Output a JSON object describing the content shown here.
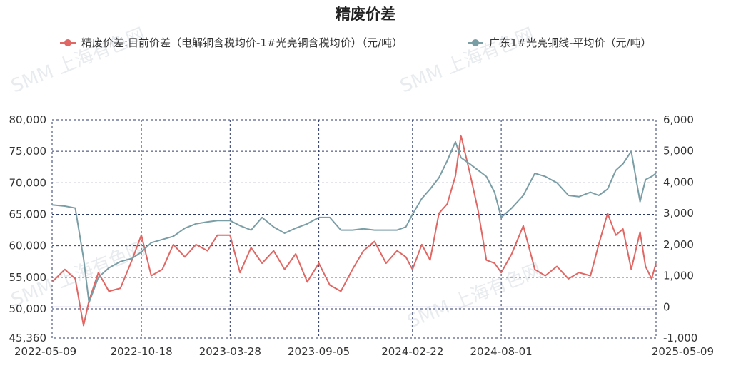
{
  "watermark": "SMM 上海有色网",
  "chart_data": {
    "type": "line",
    "title": "精废价差",
    "colors": {
      "series1": "#e06763",
      "series2": "#7a9ea6"
    },
    "x_labels": [
      "2022-05-09",
      "2022-10-18",
      "2023-03-28",
      "2023-09-05",
      "2024-02-22",
      "2024-08-01",
      "2025-05-09"
    ],
    "y_left": {
      "ticks": [
        "80,000",
        "75,000",
        "70,000",
        "65,000",
        "60,000",
        "55,000",
        "50,000",
        "45,360"
      ],
      "range": [
        45360,
        80000
      ]
    },
    "y_right": {
      "ticks": [
        "6,000",
        "5,000",
        "4,000",
        "3,000",
        "2,000",
        "1,000",
        "0",
        "-1,000"
      ],
      "range": [
        -1000,
        6000
      ]
    },
    "grid": true,
    "legend_position": "top",
    "series": [
      {
        "name": "精废价差:目前价差（电解铜含税均价-1#光亮铜含税均价）（元/吨）",
        "axis": "right",
        "x": [
          "2022-05-09",
          "2022-06-01",
          "2022-06-20",
          "2022-07-05",
          "2022-07-15",
          "2022-08-01",
          "2022-08-20",
          "2022-09-10",
          "2022-10-01",
          "2022-10-18",
          "2022-11-05",
          "2022-11-25",
          "2022-12-15",
          "2023-01-05",
          "2023-01-25",
          "2023-02-15",
          "2023-03-05",
          "2023-03-28",
          "2023-04-15",
          "2023-05-05",
          "2023-05-25",
          "2023-06-15",
          "2023-07-05",
          "2023-07-25",
          "2023-08-15",
          "2023-09-05",
          "2023-09-25",
          "2023-10-15",
          "2023-11-05",
          "2023-11-25",
          "2023-12-15",
          "2024-01-05",
          "2024-01-25",
          "2024-02-10",
          "2024-02-22",
          "2024-03-10",
          "2024-03-25",
          "2024-04-10",
          "2024-04-25",
          "2024-05-10",
          "2024-05-20",
          "2024-06-05",
          "2024-06-20",
          "2024-07-05",
          "2024-07-20",
          "2024-08-01",
          "2024-08-20",
          "2024-09-10",
          "2024-10-01",
          "2024-10-20",
          "2024-11-10",
          "2024-12-01",
          "2024-12-20",
          "2025-01-10",
          "2025-01-25",
          "2025-02-10",
          "2025-02-25",
          "2025-03-10",
          "2025-03-25",
          "2025-04-10",
          "2025-04-20",
          "2025-05-01",
          "2025-05-09"
        ],
        "values": [
          800,
          1200,
          900,
          -600,
          200,
          1100,
          500,
          600,
          1500,
          2300,
          1000,
          1200,
          2000,
          1600,
          2000,
          1800,
          2300,
          2300,
          1100,
          1900,
          1400,
          1800,
          1200,
          1700,
          800,
          1400,
          700,
          500,
          1200,
          1800,
          2100,
          1400,
          1800,
          1600,
          1200,
          2000,
          1500,
          3000,
          3300,
          4200,
          5500,
          4300,
          3100,
          1500,
          1400,
          1100,
          1700,
          2600,
          1200,
          1000,
          1300,
          900,
          1100,
          1000,
          2000,
          3000,
          2300,
          2500,
          1200,
          2400,
          1300,
          900,
          1400
        ]
      },
      {
        "name": "广东1#光亮铜线-平均价（元/吨）",
        "axis": "left",
        "x": [
          "2022-05-09",
          "2022-06-01",
          "2022-06-20",
          "2022-07-05",
          "2022-07-15",
          "2022-08-01",
          "2022-08-20",
          "2022-09-10",
          "2022-10-01",
          "2022-10-18",
          "2022-11-05",
          "2022-11-25",
          "2022-12-15",
          "2023-01-05",
          "2023-01-25",
          "2023-02-15",
          "2023-03-05",
          "2023-03-28",
          "2023-04-15",
          "2023-05-05",
          "2023-05-25",
          "2023-06-15",
          "2023-07-05",
          "2023-07-25",
          "2023-08-15",
          "2023-09-05",
          "2023-09-25",
          "2023-10-15",
          "2023-11-05",
          "2023-11-25",
          "2023-12-15",
          "2024-01-05",
          "2024-01-25",
          "2024-02-10",
          "2024-02-22",
          "2024-03-10",
          "2024-03-25",
          "2024-04-10",
          "2024-04-25",
          "2024-05-10",
          "2024-05-20",
          "2024-06-05",
          "2024-06-20",
          "2024-07-05",
          "2024-07-20",
          "2024-08-01",
          "2024-08-20",
          "2024-09-10",
          "2024-10-01",
          "2024-10-20",
          "2024-11-10",
          "2024-12-01",
          "2024-12-20",
          "2025-01-10",
          "2025-01-25",
          "2025-02-10",
          "2025-02-25",
          "2025-03-10",
          "2025-03-25",
          "2025-04-10",
          "2025-04-20",
          "2025-05-01",
          "2025-05-09"
        ],
        "values": [
          66500,
          66300,
          66000,
          58000,
          51000,
          55000,
          56500,
          57500,
          58000,
          59000,
          60500,
          61000,
          61500,
          62800,
          63500,
          63800,
          64000,
          64000,
          63200,
          62500,
          64500,
          63000,
          62000,
          62800,
          63500,
          64500,
          64500,
          62500,
          62500,
          62700,
          62500,
          62500,
          62500,
          63000,
          65000,
          67500,
          69000,
          70800,
          73500,
          76500,
          74000,
          73000,
          72000,
          71000,
          68500,
          64500,
          66000,
          68000,
          71500,
          71000,
          70000,
          68000,
          67800,
          68500,
          68000,
          69000,
          72000,
          73000,
          75000,
          67000,
          70500,
          71000,
          71500
        ]
      }
    ]
  }
}
